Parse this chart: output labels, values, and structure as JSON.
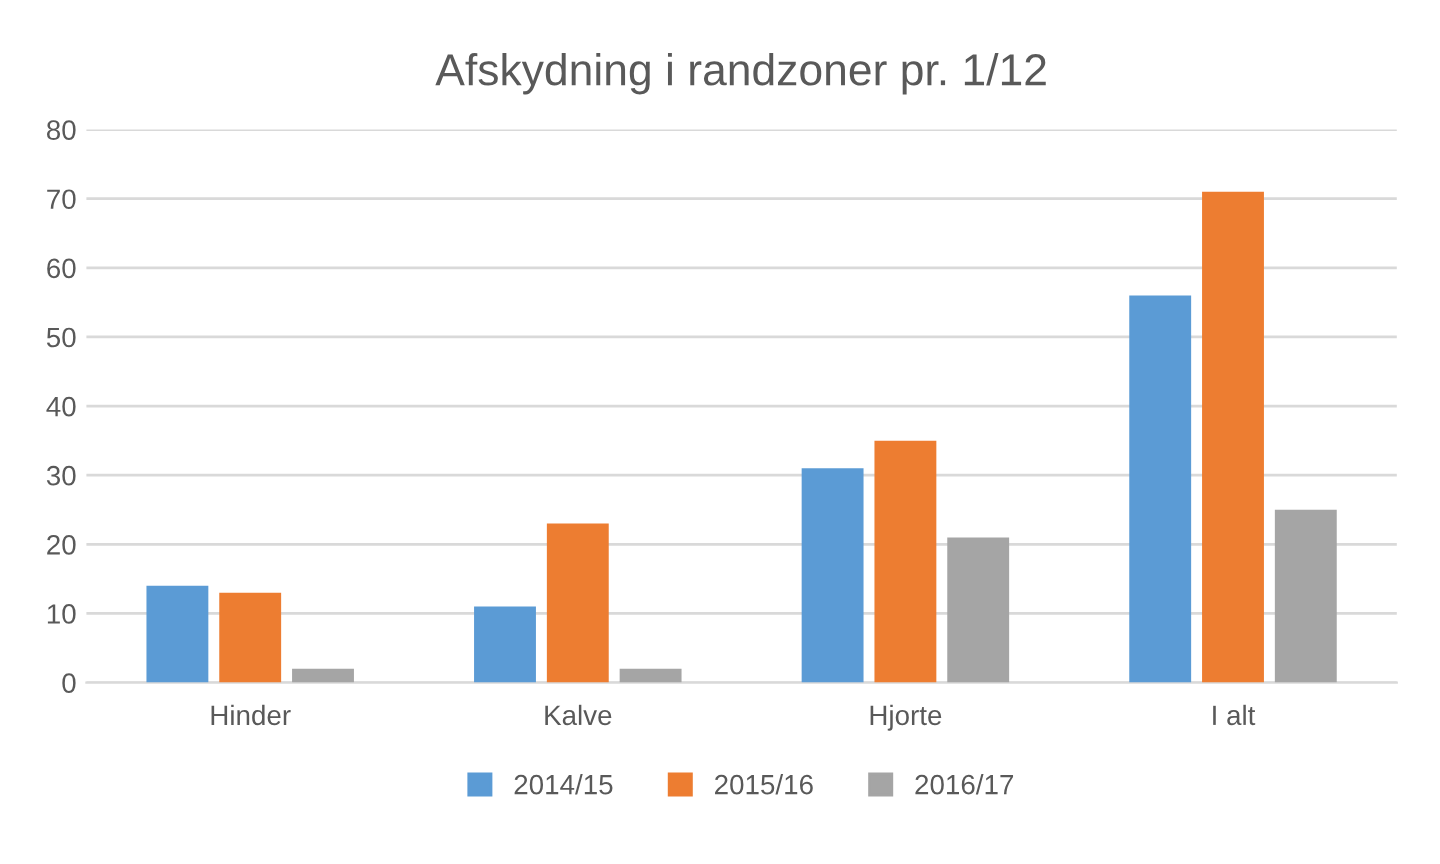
{
  "chart_data": {
    "type": "bar",
    "title": "Afskydning i randzoner pr. 1/12",
    "categories": [
      "Hinder",
      "Kalve",
      "Hjorte",
      "I alt"
    ],
    "series": [
      {
        "name": "2014/15",
        "color": "#5b9bd5",
        "values": [
          14,
          11,
          31,
          56
        ]
      },
      {
        "name": "2015/16",
        "color": "#ed7d31",
        "values": [
          13,
          23,
          35,
          71
        ]
      },
      {
        "name": "2016/17",
        "color": "#a5a5a5",
        "values": [
          2,
          2,
          21,
          25
        ]
      }
    ],
    "ylim": [
      0,
      80
    ],
    "yticks": [
      0,
      10,
      20,
      30,
      40,
      50,
      60,
      70,
      80
    ],
    "grid": "y",
    "legend": "bottom"
  }
}
